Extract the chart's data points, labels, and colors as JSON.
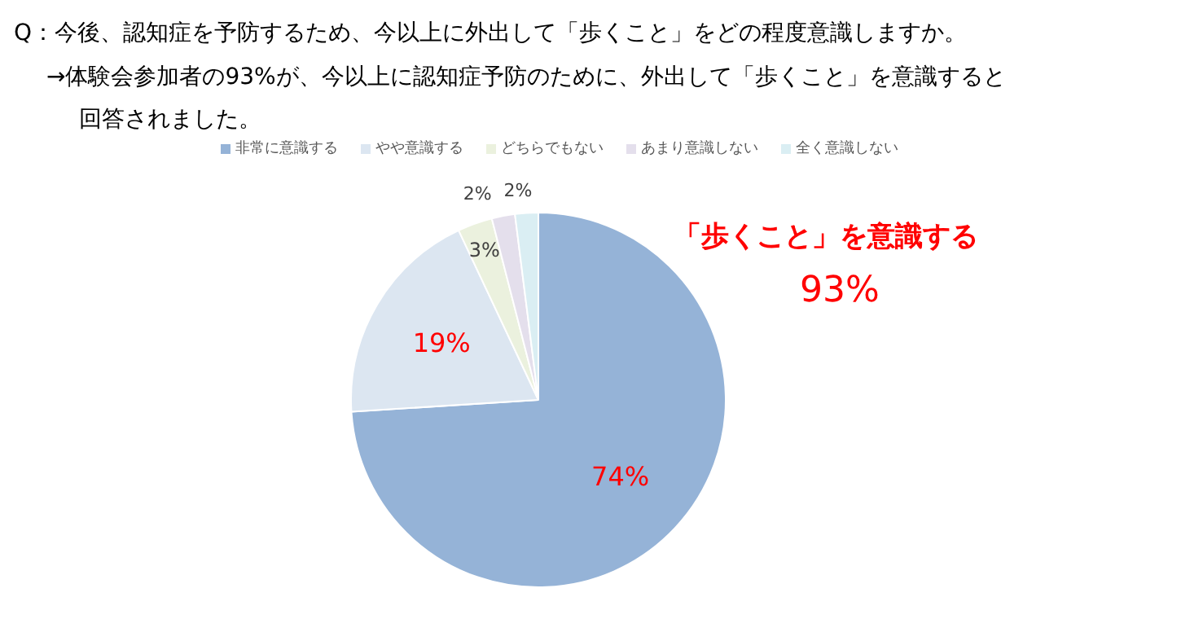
{
  "chart_data": {
    "type": "pie",
    "title": "Q：今後、認知症を予防するため、今以上に外出して「歩くこと」をどの程度意識しますか。",
    "subtitle": "→体験会参加者の93%が、今以上に認知症予防のために、外出して「歩くこと」を意識すると回答されました。",
    "categories": [
      "非常に意識する",
      "やや意識する",
      "どちらでもない",
      "あまり意識しない",
      "全く意識しない"
    ],
    "values": [
      74,
      19,
      3,
      2,
      2
    ],
    "colors": [
      "#95b3d7",
      "#dce6f1",
      "#ebf1de",
      "#e4dfec",
      "#daeef3"
    ],
    "value_labels": [
      "74%",
      "19%",
      "3%",
      "2%",
      "2%"
    ],
    "legend": "top",
    "annotations": [
      "「歩くこと」を意識する",
      "93%"
    ]
  }
}
